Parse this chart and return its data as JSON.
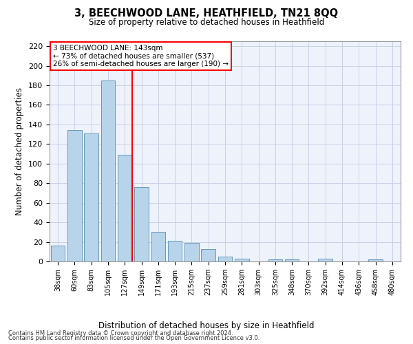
{
  "title": "3, BEECHWOOD LANE, HEATHFIELD, TN21 8QQ",
  "subtitle": "Size of property relative to detached houses in Heathfield",
  "xlabel": "Distribution of detached houses by size in Heathfield",
  "ylabel": "Number of detached properties",
  "categories": [
    "38sqm",
    "60sqm",
    "83sqm",
    "105sqm",
    "127sqm",
    "149sqm",
    "171sqm",
    "193sqm",
    "215sqm",
    "237sqm",
    "259sqm",
    "281sqm",
    "303sqm",
    "325sqm",
    "348sqm",
    "370sqm",
    "392sqm",
    "414sqm",
    "436sqm",
    "458sqm",
    "480sqm"
  ],
  "values": [
    16,
    134,
    131,
    185,
    109,
    76,
    30,
    21,
    19,
    13,
    5,
    3,
    0,
    2,
    2,
    0,
    3,
    0,
    0,
    2,
    0
  ],
  "bar_color": "#b8d4ea",
  "bar_edge_color": "#6699bb",
  "grid_color": "#c8d0e8",
  "background_color": "#eef2fa",
  "vline_color": "red",
  "annotation_box_text": "3 BEECHWOOD LANE: 143sqm\n← 73% of detached houses are smaller (537)\n26% of semi-detached houses are larger (190) →",
  "ylim": [
    0,
    225
  ],
  "yticks": [
    0,
    20,
    40,
    60,
    80,
    100,
    120,
    140,
    160,
    180,
    200,
    220
  ],
  "footnote1": "Contains HM Land Registry data © Crown copyright and database right 2024.",
  "footnote2": "Contains public sector information licensed under the Open Government Licence v3.0."
}
